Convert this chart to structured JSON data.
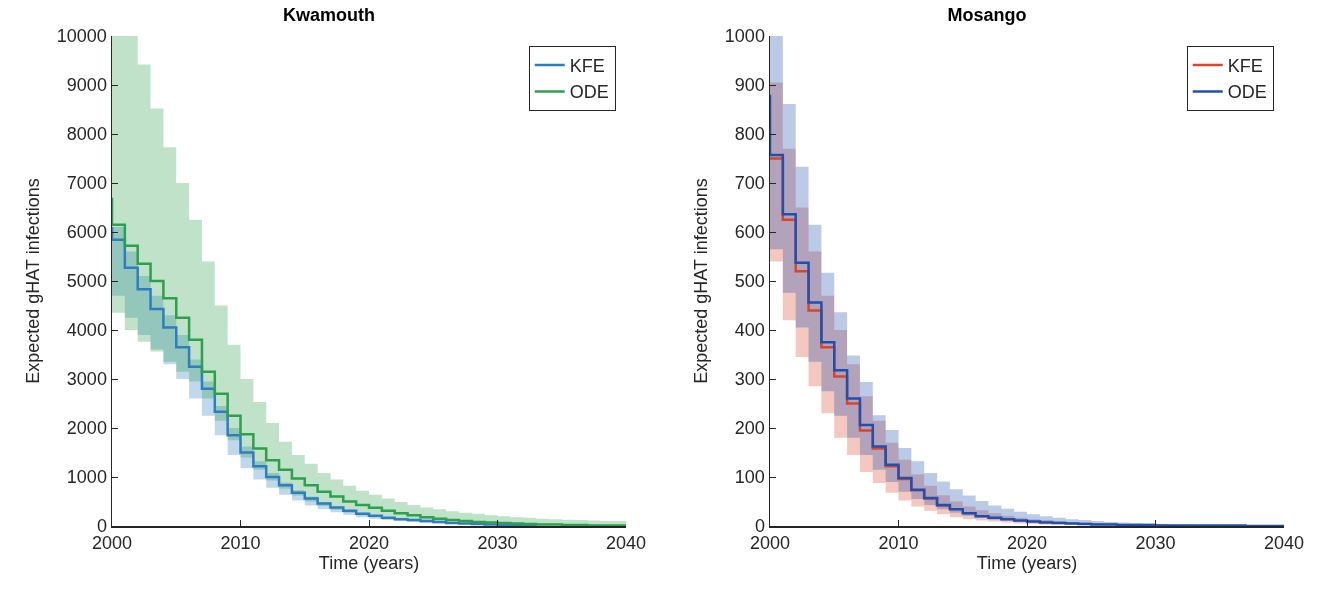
{
  "chart_data": [
    {
      "type": "step",
      "title": "Kwamouth",
      "xlabel": "Time (years)",
      "ylabel": "Expected gHAT infections",
      "xlim": [
        2000,
        2040
      ],
      "ylim": [
        0,
        10000
      ],
      "xticks": [
        2000,
        2010,
        2020,
        2030,
        2040
      ],
      "yticks": [
        0,
        1000,
        2000,
        3000,
        4000,
        5000,
        6000,
        7000,
        8000,
        9000,
        10000
      ],
      "legend": "top right",
      "x": [
        2000,
        2000,
        2001,
        2002,
        2003,
        2004,
        2005,
        2006,
        2007,
        2008,
        2009,
        2010,
        2011,
        2012,
        2013,
        2014,
        2015,
        2016,
        2017,
        2018,
        2019,
        2020,
        2021,
        2022,
        2023,
        2024,
        2025,
        2026,
        2027,
        2028,
        2029,
        2030,
        2031,
        2032,
        2033,
        2034,
        2035,
        2036,
        2037,
        2038,
        2039,
        2040
      ],
      "series": [
        {
          "name": "KFE",
          "color": "#2e7ebf",
          "values": [
            6100,
            5840,
            5270,
            4830,
            4430,
            4050,
            3650,
            3250,
            2800,
            2330,
            1850,
            1500,
            1220,
            1000,
            830,
            680,
            560,
            460,
            380,
            310,
            250,
            210,
            170,
            140,
            120,
            100,
            80,
            60,
            50,
            40,
            30,
            20,
            20,
            20,
            10,
            null,
            null,
            null,
            null,
            null,
            null,
            null
          ],
          "lower": [
            4700,
            4700,
            4250,
            3900,
            3600,
            3300,
            3000,
            2600,
            2250,
            1850,
            1450,
            1180,
            950,
            780,
            640,
            520,
            420,
            340,
            280,
            230,
            180,
            150,
            120,
            100,
            80,
            60,
            50,
            40,
            30,
            20,
            20,
            20,
            10,
            10,
            10,
            10,
            0,
            0,
            0,
            0,
            0,
            0
          ],
          "upper": [
            6100,
            6100,
            5600,
            5100,
            4700,
            4300,
            3900,
            3400,
            2950,
            2450,
            2000,
            1620,
            1320,
            1080,
            890,
            730,
            600,
            490,
            400,
            330,
            270,
            220,
            180,
            150,
            120,
            100,
            80,
            60,
            50,
            40,
            30,
            30,
            20,
            20,
            20,
            10,
            10,
            10,
            10,
            0,
            0,
            0
          ]
        },
        {
          "name": "ODE",
          "color": "#2ca04c",
          "values": [
            6700,
            6150,
            5720,
            5350,
            5000,
            4650,
            4250,
            3800,
            3150,
            2700,
            2250,
            1870,
            1580,
            1340,
            1150,
            970,
            830,
            700,
            600,
            500,
            430,
            370,
            310,
            260,
            220,
            180,
            150,
            120,
            100,
            80,
            70,
            60,
            50,
            40,
            30,
            30,
            20,
            20,
            10,
            10,
            10,
            10
          ],
          "lower": [
            4350,
            4350,
            4000,
            3760,
            3560,
            3350,
            3150,
            2950,
            2600,
            2150,
            1750,
            1400,
            1150,
            930,
            760,
            620,
            500,
            410,
            330,
            270,
            220,
            180,
            150,
            120,
            100,
            80,
            60,
            50,
            40,
            30,
            20,
            20,
            20,
            10,
            10,
            10,
            10,
            0,
            0,
            0,
            0,
            0
          ],
          "upper": [
            10000,
            10000,
            10000,
            9420,
            8520,
            7730,
            7000,
            6250,
            5400,
            4500,
            3700,
            3000,
            2530,
            2100,
            1720,
            1450,
            1270,
            1080,
            950,
            820,
            720,
            640,
            560,
            490,
            430,
            380,
            340,
            300,
            270,
            250,
            220,
            200,
            180,
            170,
            150,
            140,
            130,
            120,
            110,
            100,
            100,
            90
          ]
        }
      ]
    },
    {
      "type": "step",
      "title": "Mosango",
      "xlabel": "Time (years)",
      "ylabel": "Expected gHAT infections",
      "xlim": [
        2000,
        2040
      ],
      "ylim": [
        0,
        1000
      ],
      "xticks": [
        2000,
        2010,
        2020,
        2030,
        2040
      ],
      "yticks": [
        0,
        100,
        200,
        300,
        400,
        500,
        600,
        700,
        800,
        900,
        1000
      ],
      "legend": "top right",
      "x": [
        2000,
        2000,
        2001,
        2002,
        2003,
        2004,
        2005,
        2006,
        2007,
        2008,
        2009,
        2010,
        2011,
        2012,
        2013,
        2014,
        2015,
        2016,
        2017,
        2018,
        2019,
        2020,
        2021,
        2022,
        2023,
        2024,
        2025,
        2026,
        2027,
        2028,
        2029,
        2030,
        2031,
        2032,
        2033,
        2034,
        2035,
        2036,
        2037,
        2038,
        2039,
        2040
      ],
      "series": [
        {
          "name": "KFE",
          "color": "#d9452b",
          "values": [
            null,
            750,
            625,
            520,
            440,
            365,
            305,
            250,
            195,
            158,
            122,
            96,
            73,
            56,
            42,
            33,
            null,
            null,
            null,
            null,
            null,
            null,
            null,
            null,
            null,
            null,
            null,
            null,
            null,
            null,
            null,
            null,
            null,
            null,
            null,
            null,
            null,
            null,
            null,
            null,
            null,
            null
          ],
          "lower": [
            540,
            540,
            420,
            345,
            285,
            230,
            180,
            145,
            110,
            88,
            68,
            52,
            40,
            31,
            24,
            18,
            14,
            11,
            9,
            7,
            5,
            4,
            3,
            3,
            2,
            2,
            1,
            1,
            1,
            1,
            1,
            0,
            0,
            0,
            0,
            0,
            0,
            0,
            0,
            0,
            0,
            0
          ],
          "upper": [
            905,
            905,
            770,
            650,
            560,
            470,
            400,
            330,
            265,
            215,
            170,
            135,
            105,
            82,
            63,
            50,
            40,
            32,
            26,
            21,
            17,
            14,
            12,
            10,
            8,
            7,
            6,
            5,
            4,
            4,
            3,
            3,
            2,
            2,
            2,
            1,
            1,
            1,
            1,
            1,
            1,
            1
          ]
        },
        {
          "name": "ODE",
          "color": "#1f4fb0",
          "values": [
            880,
            757,
            636,
            537,
            456,
            375,
            318,
            260,
            206,
            162,
            125,
            98,
            74,
            57,
            43,
            34,
            26,
            20,
            17,
            14,
            11,
            9,
            7,
            6,
            5,
            4,
            3,
            3,
            2,
            2,
            2,
            1,
            1,
            1,
            1,
            1,
            1,
            1,
            0,
            0,
            0,
            0
          ],
          "lower": [
            565,
            565,
            476,
            405,
            335,
            275,
            225,
            180,
            145,
            115,
            90,
            70,
            55,
            43,
            34,
            27,
            21,
            17,
            13,
            11,
            9,
            7,
            6,
            5,
            4,
            3,
            3,
            2,
            2,
            2,
            1,
            1,
            1,
            1,
            1,
            1,
            0,
            0,
            0,
            0,
            0,
            0
          ],
          "upper": [
            1000,
            1000,
            861,
            733,
            615,
            517,
            436,
            348,
            294,
            226,
            196,
            159,
            132,
            108,
            91,
            75,
            62,
            51,
            42,
            35,
            29,
            24,
            20,
            17,
            14,
            12,
            10,
            8,
            7,
            6,
            5,
            4,
            3,
            3,
            2,
            2,
            2,
            1,
            1,
            1,
            1,
            1
          ]
        }
      ]
    }
  ]
}
